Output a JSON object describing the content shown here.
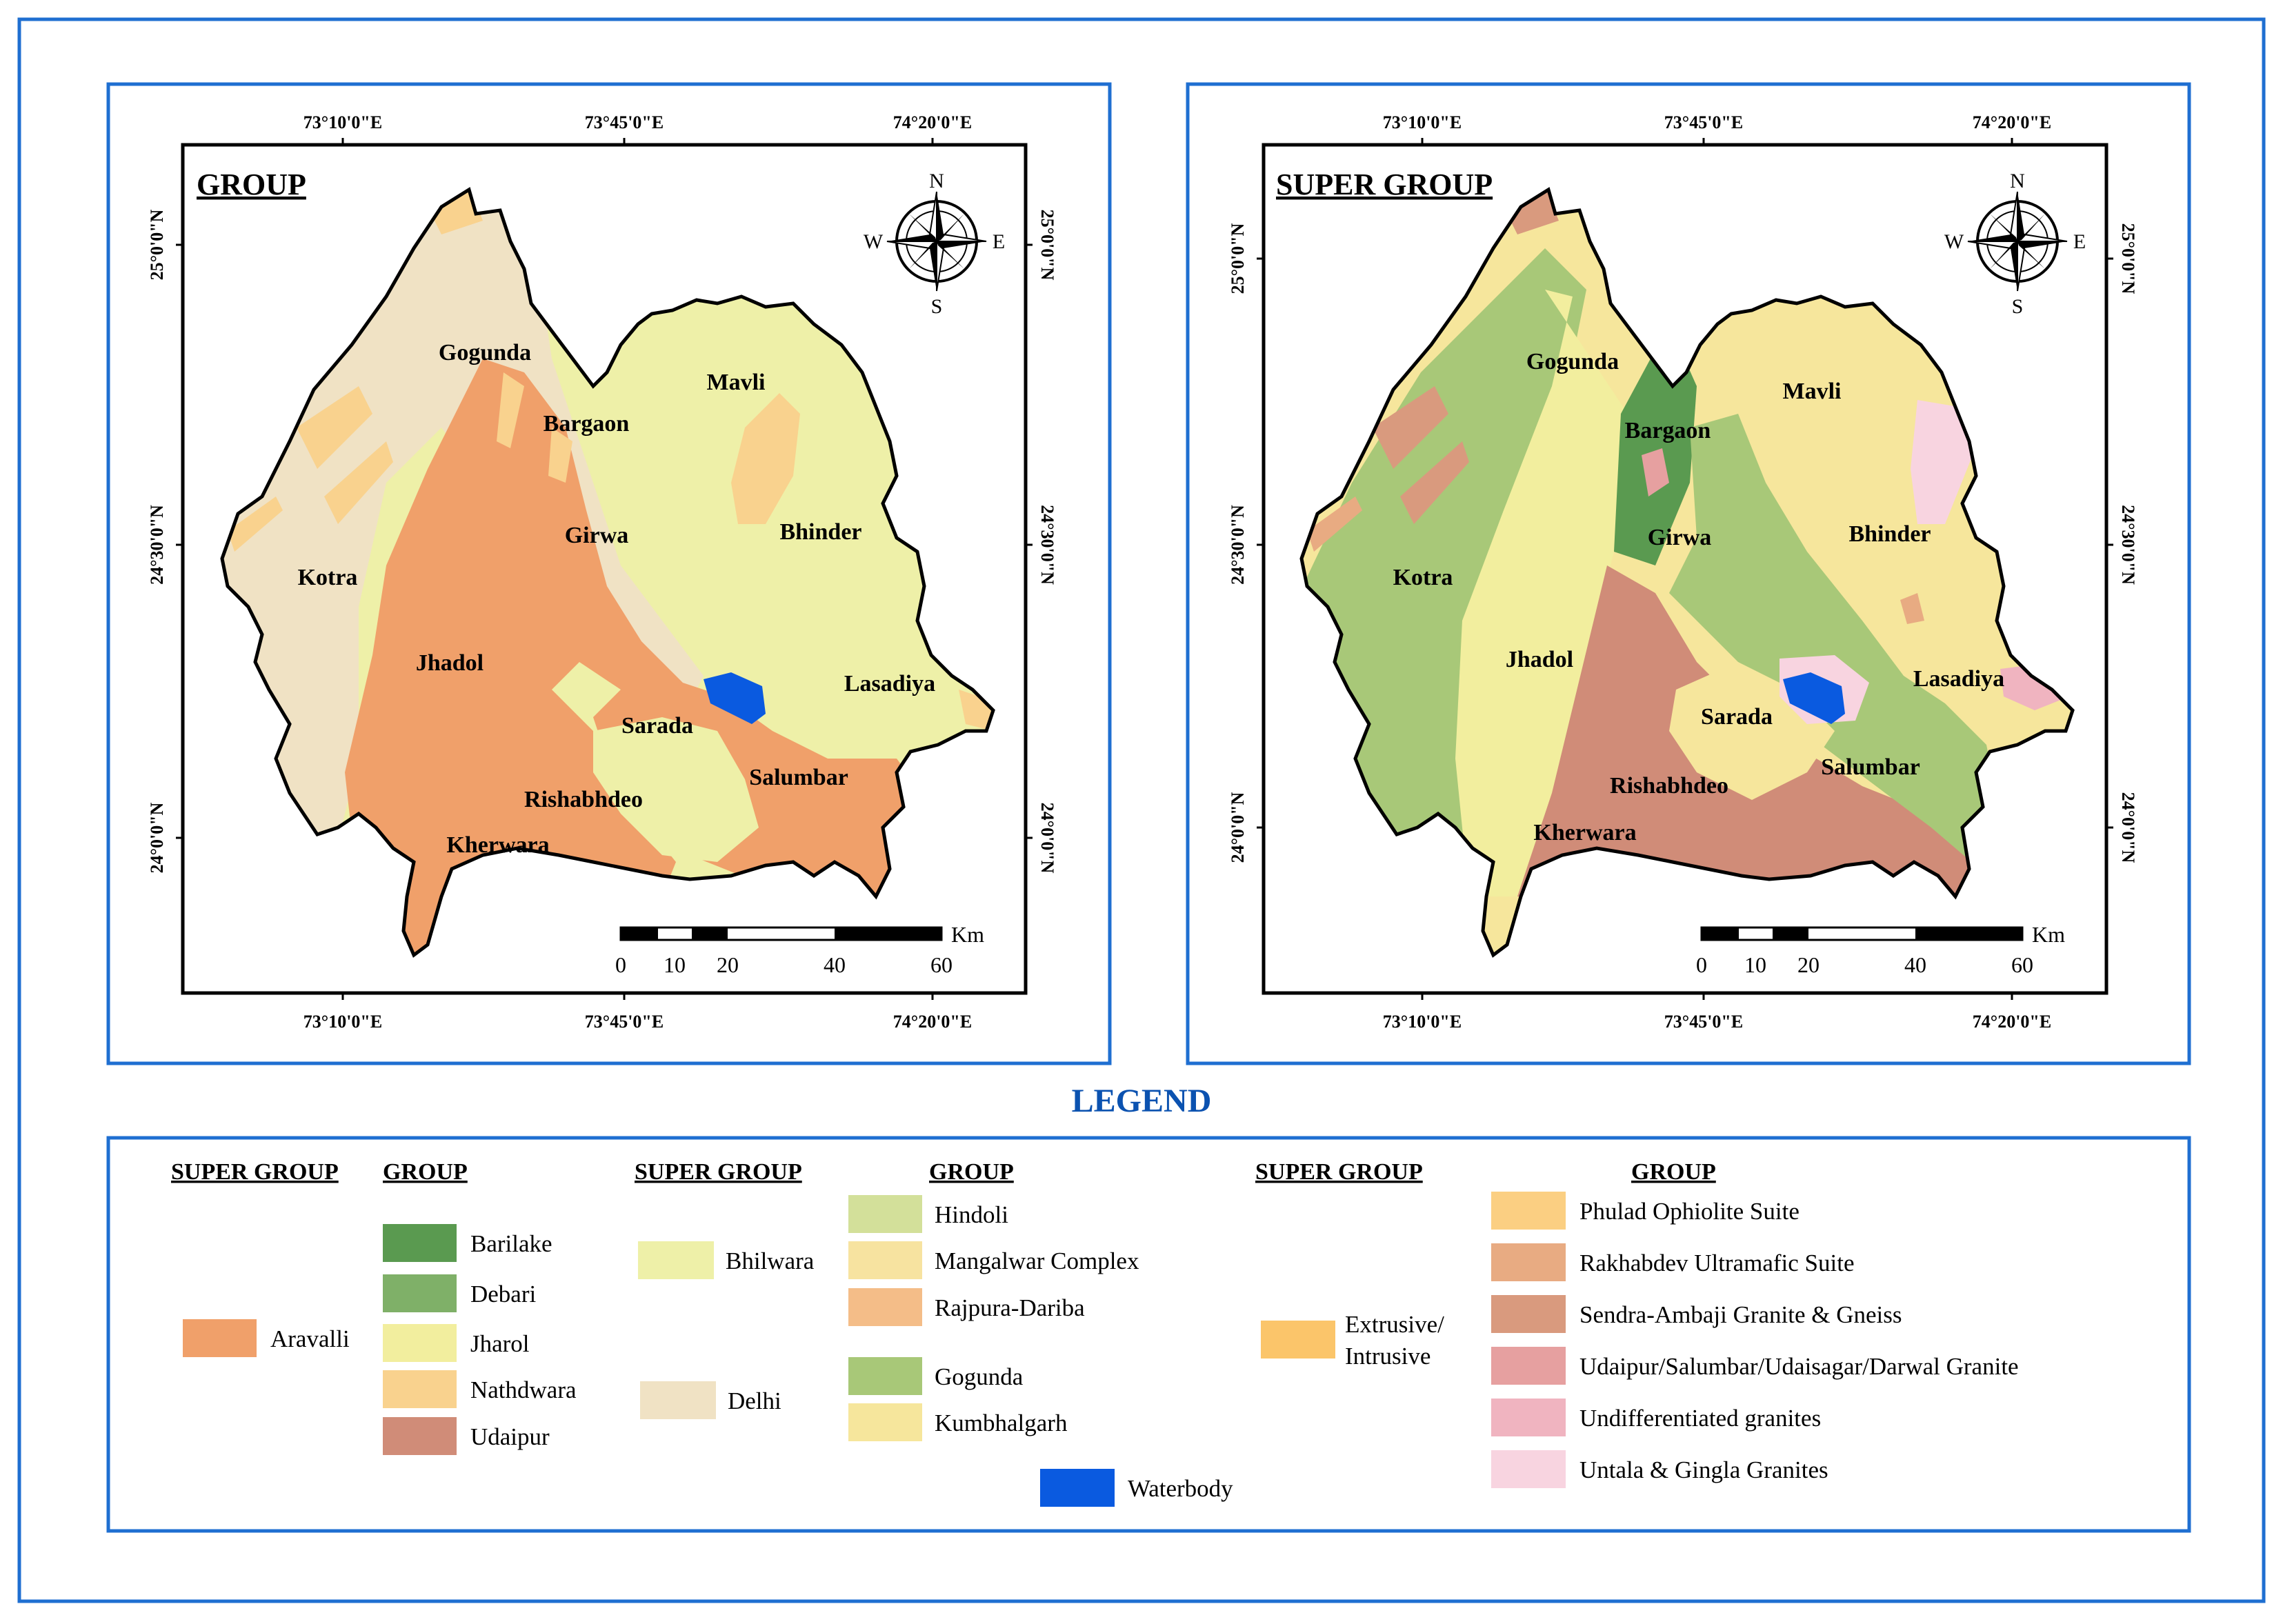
{
  "colors": {
    "frame_blue": "#1f6fd1",
    "legend_title": "#0b52b0",
    "aravalli": "#f0a06a",
    "delhi": "#f0e2c4",
    "bhilwara": "#eef0a8",
    "barilake": "#5a9a50",
    "debari": "#7fb068",
    "jharol": "#f2ee9e",
    "nathdwara": "#f9d28e",
    "udaipur": "#d08c78",
    "hindoli": "#d3e09a",
    "mangalwar": "#f7e3a0",
    "rajpura": "#f4bd88",
    "gogunda": "#a8c878",
    "kumbhalgarh": "#f6e69c",
    "phulad": "#fbcf82",
    "rakhabdev": "#e8ab82",
    "sendra": "#d99a7e",
    "udaipur_granite": "#e6a0a0",
    "undiff": "#f0b4c0",
    "untala": "#f8d4e0",
    "extrusive": "#fbc56a",
    "water": "#0a5ae0"
  },
  "maps": [
    {
      "title": "GROUP",
      "top_ticks": [
        "73°10'0\"E",
        "73°45'0\"E",
        "74°20'0\"E"
      ],
      "bottom_ticks": [
        "73°10'0\"E",
        "73°45'0\"E",
        "74°20'0\"E"
      ],
      "left_ticks": [
        "25°0'0\"N",
        "24°30'0\"N",
        "24°0'0\"N"
      ],
      "right_ticks": [
        "25°0'0\"N",
        "24°30'0\"N",
        "24°0'0\"N"
      ],
      "compass": {
        "n": "N",
        "s": "S",
        "e": "E",
        "w": "W"
      },
      "scale": {
        "unit": "Km",
        "labels": [
          "0",
          "10",
          "20",
          "40",
          "60"
        ]
      },
      "places": [
        "Gogunda",
        "Bargaon",
        "Mavli",
        "Girwa",
        "Bhinder",
        "Kotra",
        "Jhadol",
        "Lasadiya",
        "Sarada",
        "Salumbar",
        "Rishabhdeo",
        "Kherwara"
      ]
    },
    {
      "title": "SUPER GROUP",
      "top_ticks": [
        "73°10'0\"E",
        "73°45'0\"E",
        "74°20'0\"E"
      ],
      "bottom_ticks": [
        "73°10'0\"E",
        "73°45'0\"E",
        "74°20'0\"E"
      ],
      "left_ticks": [
        "25°0'0\"N",
        "24°30'0\"N",
        "24°0'0\"N"
      ],
      "right_ticks": [
        "25°0'0\"N",
        "24°30'0\"N",
        "24°0'0\"N"
      ],
      "compass": {
        "n": "N",
        "s": "S",
        "e": "E",
        "w": "W"
      },
      "scale": {
        "unit": "Km",
        "labels": [
          "0",
          "10",
          "20",
          "40",
          "60"
        ]
      },
      "places": [
        "Gogunda",
        "Bargaon",
        "Mavli",
        "Girwa",
        "Bhinder",
        "Kotra",
        "Jhadol",
        "Lasadiya",
        "Sarada",
        "Salumbar",
        "Rishabhdeo",
        "Kherwara"
      ]
    }
  ],
  "legend": {
    "title": "LEGEND",
    "col1": {
      "super_header": "SUPER GROUP",
      "group_header": "GROUP",
      "super": "Aravalli",
      "groups": [
        "Barilake",
        "Debari",
        "Jharol",
        "Nathdwara",
        "Udaipur"
      ]
    },
    "col2": {
      "super_header": "SUPER GROUP",
      "group_header": "GROUP",
      "supers": [
        "Bhilwara",
        "Delhi"
      ],
      "groups": [
        "Hindoli",
        "Mangalwar Complex",
        "Rajpura-Dariba",
        "Gogunda",
        "Kumbhalgarh"
      ],
      "water": "Waterbody"
    },
    "col3": {
      "super_header": "SUPER GROUP",
      "group_header": "GROUP",
      "super_line1": "Extrusive/",
      "super_line2": "Intrusive",
      "groups": [
        "Phulad Ophiolite Suite",
        "Rakhabdev Ultramafic Suite",
        "Sendra-Ambaji Granite & Gneiss",
        "Udaipur/Salumbar/Udaisagar/Darwal Granite",
        "Undifferentiated granites",
        "Untala & Gingla Granites"
      ]
    }
  }
}
